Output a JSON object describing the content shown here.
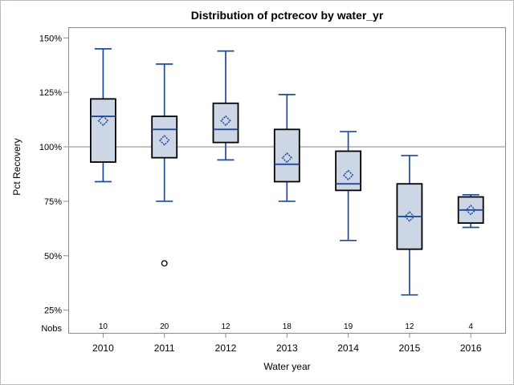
{
  "title": "Distribution of pctrecov by water_yr",
  "y_axis": {
    "label": "Pct Recovery",
    "nobs_label": "Nobs",
    "tick_labels": [
      "150%",
      "125%",
      "100%",
      "75%",
      "50%",
      "25%"
    ]
  },
  "x_axis": {
    "label": "Water year",
    "tick_labels": [
      "2010",
      "2011",
      "2012",
      "2013",
      "2014",
      "2015",
      "2016"
    ]
  },
  "colors": {
    "box_fill": "#ccd6e4",
    "box_border": "#000000",
    "blue_line": "#1e4a9c",
    "reference_line": "#a6a6a6",
    "axis_line": "#8a8a8a",
    "outlier_stroke": "#000000",
    "frame": "#b7bcc0",
    "background": "#ffffff"
  },
  "chart_data": {
    "type": "boxplot",
    "title": "Distribution of pctrecov by water_yr",
    "xlabel": "Water year",
    "ylabel": "Pct Recovery",
    "ylim": [
      20,
      155
    ],
    "grid": false,
    "reference_line": 100,
    "legend": "none",
    "yticks": [
      {
        "value": 150,
        "label": "150%"
      },
      {
        "value": 125,
        "label": "125%"
      },
      {
        "value": 100,
        "label": "100%"
      },
      {
        "value": 75,
        "label": "75%"
      },
      {
        "value": 50,
        "label": "50%"
      },
      {
        "value": 25,
        "label": "25%"
      }
    ],
    "nobs_label": "Nobs",
    "categories": [
      "2010",
      "2011",
      "2012",
      "2013",
      "2014",
      "2015",
      "2016"
    ],
    "nobs": [
      10,
      20,
      12,
      18,
      19,
      12,
      4
    ],
    "series": [
      {
        "category": "2010",
        "whisker_low": 84,
        "q1": 93,
        "median": 114,
        "q3": 122,
        "whisker_high": 145,
        "mean": 112,
        "outliers": []
      },
      {
        "category": "2011",
        "whisker_low": 75,
        "q1": 95,
        "median": 108,
        "q3": 114,
        "whisker_high": 138,
        "mean": 103,
        "outliers": [
          46.5
        ]
      },
      {
        "category": "2012",
        "whisker_low": 94,
        "q1": 102,
        "median": 108,
        "q3": 120,
        "whisker_high": 144,
        "mean": 112,
        "outliers": []
      },
      {
        "category": "2013",
        "whisker_low": 75,
        "q1": 84,
        "median": 92,
        "q3": 108,
        "whisker_high": 124,
        "mean": 95,
        "outliers": []
      },
      {
        "category": "2014",
        "whisker_low": 57,
        "q1": 80,
        "median": 83,
        "q3": 98,
        "whisker_high": 107,
        "mean": 87,
        "outliers": []
      },
      {
        "category": "2015",
        "whisker_low": 32,
        "q1": 53,
        "median": 68,
        "q3": 83,
        "whisker_high": 96,
        "mean": 68,
        "outliers": []
      },
      {
        "category": "2016",
        "whisker_low": 63,
        "q1": 65,
        "median": 71,
        "q3": 77,
        "whisker_high": 78,
        "mean": 71,
        "outliers": []
      }
    ]
  }
}
